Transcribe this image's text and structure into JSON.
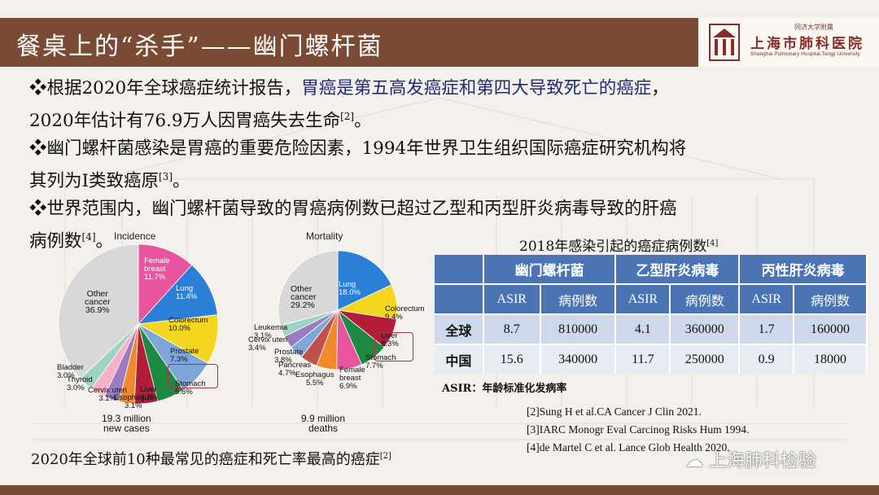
{
  "title": "餐桌上的“杀手”——幽门螺杆菌",
  "logo": {
    "line1": "同济大学附属",
    "name": "上海市肺科医院",
    "english": "Shanghai Pulmonary Hospital,Tongji University"
  },
  "bullets": {
    "b1_prefix": "❖根据2020年全球癌症统计报告，",
    "b1_highlight": "胃癌是第五高发癌症和第四大导致死亡的癌症",
    "b1_suffix": "，",
    "b1_line2": "2020年估计有76.9万人因胃癌失去生命",
    "b1_ref": "[2]",
    "b1_end": "。",
    "b2_line1": "❖幽门螺杆菌感染是胃癌的重要危险因素，1994年世界卫生组织国际癌症研究机构将",
    "b2_line2": "其列为Ⅰ类致癌原",
    "b2_ref": "[3]",
    "b2_end": "。",
    "b3_line1": "❖世界范围内，幽门螺杆菌导致的胃癌病例数已超过乙型和丙型肝炎病毒导致的肝癌",
    "b3_line2": "病例数",
    "b3_ref": "[4]",
    "b3_end": "。"
  },
  "chart_data": [
    {
      "type": "pie",
      "title": "Incidence",
      "caption": "19.3 million\nnew cases",
      "slices": [
        {
          "label": "Female breast",
          "value": 11.7,
          "color": "#e8549e"
        },
        {
          "label": "Lung",
          "value": 11.4,
          "color": "#2b7fd6"
        },
        {
          "label": "Colorectum",
          "value": 10.0,
          "color": "#f4d51f"
        },
        {
          "label": "Prostate",
          "value": 7.3,
          "color": "#7fa6d8"
        },
        {
          "label": "Stomach",
          "value": 5.6,
          "color": "#1d8a44"
        },
        {
          "label": "Liver",
          "value": 4.7,
          "color": "#b11e3a"
        },
        {
          "label": "Esophagus",
          "value": 3.1,
          "color": "#f08a2c"
        },
        {
          "label": "Cervix uteri",
          "value": 3.1,
          "color": "#9c7bc2"
        },
        {
          "label": "Thyroid",
          "value": 3.0,
          "color": "#f6b0c8"
        },
        {
          "label": "Bladder",
          "value": 3.0,
          "color": "#9fd3c1"
        },
        {
          "label": "Other cancer",
          "value": 36.9,
          "color": "#d8d8d8"
        }
      ],
      "labels_text": {
        "female": "Female\nbreast\n11.7%",
        "lung": "Lung\n11.4%",
        "colorectum": "Colorectum\n10.0%",
        "prostate": "Prostate\n7.3%",
        "stomach": "Stomach\n5.6%",
        "liver": "Liver\n4.7%",
        "esophagus": "Esophagus\n3.1%",
        "cervix": "Cervix uteri\n3.1%",
        "thyroid": "Thyroid\n3.0%",
        "bladder": "Bladder\n3.0%",
        "other": "Other\ncancer\n36.9%"
      }
    },
    {
      "type": "pie",
      "title": "Mortality",
      "caption": "9.9 million\ndeaths",
      "slices": [
        {
          "label": "Lung",
          "value": 18.0,
          "color": "#2b7fd6"
        },
        {
          "label": "Colorectum",
          "value": 9.4,
          "color": "#f4d51f"
        },
        {
          "label": "Liver",
          "value": 8.3,
          "color": "#b11e3a"
        },
        {
          "label": "Stomach",
          "value": 7.7,
          "color": "#1d8a44"
        },
        {
          "label": "Female breast",
          "value": 6.9,
          "color": "#e8549e"
        },
        {
          "label": "Esophagus",
          "value": 5.5,
          "color": "#f08a2c"
        },
        {
          "label": "Pancreas",
          "value": 4.7,
          "color": "#c0504d"
        },
        {
          "label": "Prostate",
          "value": 3.8,
          "color": "#7fa6d8"
        },
        {
          "label": "Cervix uteri",
          "value": 3.4,
          "color": "#9c7bc2"
        },
        {
          "label": "Leukemia",
          "value": 3.1,
          "color": "#9fd3c1"
        },
        {
          "label": "Other cancer",
          "value": 29.2,
          "color": "#d8d8d8"
        }
      ],
      "labels_text": {
        "lung": "Lung\n18.0%",
        "colorectum": "Colorectum\n9.4%",
        "liver": "Liver\n8.3%",
        "stomach": "Stomach\n7.7%",
        "female": "Female\nbreast\n6.9%",
        "esophagus": "Esophagus\n5.5%",
        "pancreas": "Pancreas\n4.7%",
        "prostate": "Prostate\n3.8%",
        "cervix": "Cervix uteri\n3.4%",
        "leukemia": "Leukemia\n3.1%",
        "other": "Other\ncancer\n29.2%"
      }
    },
    {
      "type": "table",
      "title": "2018年感染引起的癌症病例数",
      "title_ref": "[4]",
      "headers": [
        "",
        "幽门螺杆菌",
        "乙型肝炎病毒",
        "丙性肝炎病毒"
      ],
      "subheaders": [
        "",
        "ASIR",
        "病例数",
        "ASIR",
        "病例数",
        "ASIR",
        "病例数"
      ],
      "rows": [
        [
          "全球",
          "8.7",
          "810000",
          "4.1",
          "360000",
          "1.7",
          "160000"
        ],
        [
          "中国",
          "15.6",
          "340000",
          "11.7",
          "250000",
          "0.9",
          "18000"
        ]
      ],
      "note": "ASIR：年龄标准化发病率"
    }
  ],
  "references": [
    "[2]Sung H et al.CA Cancer J Clin 2021.",
    "[3]IARC Monogr Eval Carcinog Risks Hum 1994.",
    "[4]de Martel C et al. Lance   Glob Health 2020."
  ],
  "bottom_caption": "2020年全球前10种最常见的癌症和死亡率最高的癌症",
  "bottom_caption_ref": "[2]",
  "watermark": "上海肺科检验",
  "colors": {
    "header": "#7a4a35",
    "table_header": "#4a74b3",
    "highlight_text": "#1f2a7a",
    "callout": "#b03040"
  }
}
